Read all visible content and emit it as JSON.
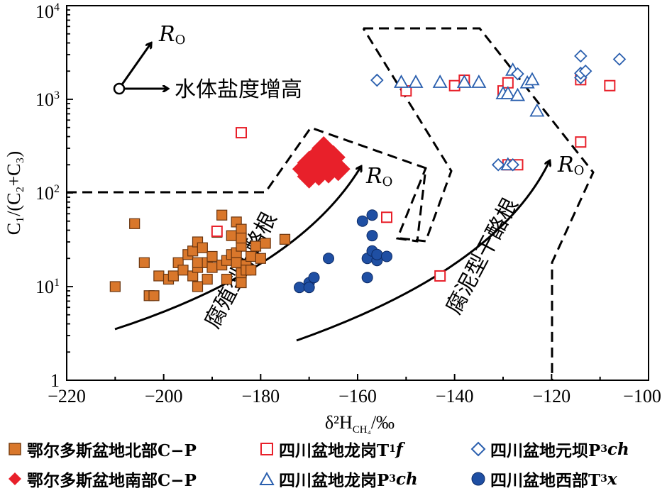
{
  "chart_data": {
    "type": "scatter",
    "xlabel": "δ²H",
    "xlabel_sub": "CH₄",
    "xlabel_unit": "/‰",
    "ylabel": "C₁/(C₂+C₃)",
    "xlim": [
      -220,
      -100
    ],
    "ylim": [
      1,
      10000
    ],
    "yscale": "log",
    "x_ticks": [
      "−220",
      "−200",
      "−180",
      "−160",
      "−140",
      "−120",
      "−100"
    ],
    "y_ticks": [
      {
        "base": "1",
        "exp": ""
      },
      {
        "base": "10",
        "exp": "1"
      },
      {
        "base": "10",
        "exp": "2"
      },
      {
        "base": "10",
        "exp": "3"
      },
      {
        "base": "10",
        "exp": "4"
      }
    ],
    "annotations": {
      "ro_label": "R",
      "ro_sub": "O",
      "salinity": "水体盐度增高",
      "humic": "腐殖型干酪根",
      "sapropel": "腐泥型干酪根"
    },
    "series": [
      {
        "name": "鄂尔多斯盆地北部C−P",
        "marker": "square-filled",
        "color": "#d9772b",
        "points": [
          [
            -210,
            10
          ],
          [
            -206,
            47
          ],
          [
            -204,
            18
          ],
          [
            -203,
            8
          ],
          [
            -202,
            8
          ],
          [
            -201,
            13
          ],
          [
            -199,
            12
          ],
          [
            -198,
            13
          ],
          [
            -197,
            18
          ],
          [
            -196,
            15
          ],
          [
            -195,
            22
          ],
          [
            -194,
            13
          ],
          [
            -194,
            24
          ],
          [
            -193,
            30
          ],
          [
            -193,
            16
          ],
          [
            -193,
            18
          ],
          [
            -192,
            26
          ],
          [
            -191,
            18
          ],
          [
            -191,
            12
          ],
          [
            -190,
            21
          ],
          [
            -190,
            16
          ],
          [
            -189,
            38
          ],
          [
            -188,
            17
          ],
          [
            -188,
            58
          ],
          [
            -187,
            19
          ],
          [
            -187,
            12
          ],
          [
            -186,
            22
          ],
          [
            -186,
            35
          ],
          [
            -185,
            18
          ],
          [
            -185,
            49
          ],
          [
            -185,
            23
          ],
          [
            -184,
            14
          ],
          [
            -184,
            27
          ],
          [
            -184,
            41
          ],
          [
            -184,
            33
          ],
          [
            -184,
            11
          ],
          [
            -183,
            17
          ],
          [
            -183,
            15
          ],
          [
            -182,
            21
          ],
          [
            -182,
            15
          ],
          [
            -181,
            27
          ],
          [
            -180,
            20
          ],
          [
            -179,
            29
          ],
          [
            -175,
            32
          ],
          [
            -193,
            10
          ]
        ]
      },
      {
        "name": "鄂尔多斯盆地南部C−P",
        "marker": "diamond-filled",
        "color": "#e8202a",
        "points": [
          [
            -171,
            180
          ],
          [
            -170,
            150
          ],
          [
            -170,
            210
          ],
          [
            -169,
            230
          ],
          [
            -168,
            160
          ],
          [
            -168,
            260
          ],
          [
            -167,
            190
          ],
          [
            -167,
            300
          ],
          [
            -166,
            220
          ],
          [
            -166,
            170
          ],
          [
            -165,
            240
          ],
          [
            -165,
            200
          ],
          [
            -164,
            180
          ]
        ]
      },
      {
        "name": "四川盆地龙岗T₁f",
        "marker": "square-open",
        "color": "#e8202a",
        "points": [
          [
            -184,
            440
          ],
          [
            -189,
            39
          ],
          [
            -154,
            55
          ],
          [
            -143,
            13
          ],
          [
            -150,
            1230
          ],
          [
            -140,
            1400
          ],
          [
            -138,
            1600
          ],
          [
            -130,
            1230
          ],
          [
            -129,
            1500
          ],
          [
            -129,
            200
          ],
          [
            -127,
            200
          ],
          [
            -114,
            1620
          ],
          [
            -114,
            350
          ],
          [
            -108,
            1400
          ]
        ]
      },
      {
        "name": "四川盆地龙岗P₃ch",
        "marker": "triangle-open",
        "color": "#2a5fae",
        "points": [
          [
            -151,
            1520
          ],
          [
            -148,
            1520
          ],
          [
            -143,
            1520
          ],
          [
            -138,
            1520
          ],
          [
            -135,
            1520
          ],
          [
            -130,
            1150
          ],
          [
            -129,
            1150
          ],
          [
            -128,
            2050
          ],
          [
            -127,
            1100
          ],
          [
            -125,
            1500
          ],
          [
            -124,
            1620
          ],
          [
            -123,
            750
          ],
          [
            -129,
            200
          ]
        ]
      },
      {
        "name": "四川盆地元坝P₃ch",
        "marker": "diamond-open",
        "color": "#2a5fae",
        "points": [
          [
            -156,
            1600
          ],
          [
            -131,
            200
          ],
          [
            -128,
            200
          ],
          [
            -127,
            1870
          ],
          [
            -114,
            1700
          ],
          [
            -114,
            2900
          ],
          [
            -114,
            1900
          ],
          [
            -113,
            2000
          ],
          [
            -106,
            2680
          ]
        ]
      },
      {
        "name": "四川盆地西部T₃x",
        "marker": "circle-filled",
        "color": "#1f4fa3",
        "points": [
          [
            -172,
            9.8
          ],
          [
            -170,
            11
          ],
          [
            -170,
            9.8
          ],
          [
            -169,
            12.5
          ],
          [
            -166,
            20
          ],
          [
            -159,
            50
          ],
          [
            -158,
            12.5
          ],
          [
            -158,
            20
          ],
          [
            -157,
            58
          ],
          [
            -157,
            35
          ],
          [
            -157,
            24
          ],
          [
            -156,
            19
          ],
          [
            -156,
            22
          ],
          [
            -154,
            21
          ]
        ]
      }
    ]
  },
  "legend": {
    "items": [
      {
        "label": "鄂尔多斯盆地北部C−P"
      },
      {
        "label": "四川盆地龙岗T",
        "sub": "1",
        "tail": "f"
      },
      {
        "label": "四川盆地元坝P",
        "sub": "3",
        "tail": "ch"
      },
      {
        "label": "鄂尔多斯盆地南部C−P"
      },
      {
        "label": "四川盆地龙岗P",
        "sub": "3",
        "tail": "ch"
      },
      {
        "label": "四川盆地西部T",
        "sub": "3",
        "tail": "x"
      }
    ]
  }
}
